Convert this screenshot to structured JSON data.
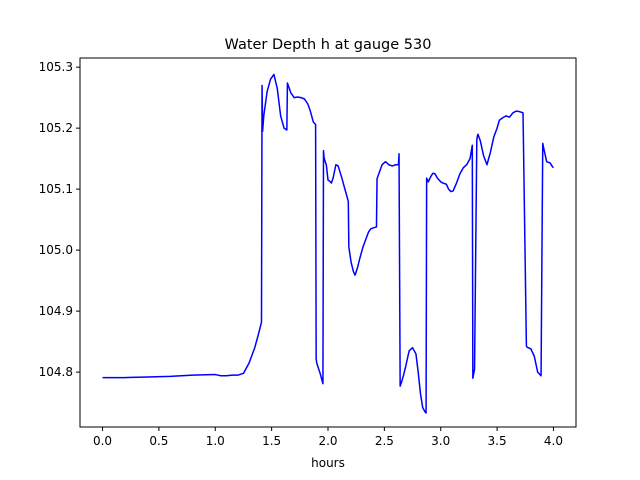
{
  "chart_data": {
    "type": "line",
    "title": "Water Depth h at gauge 530",
    "xlabel": "hours",
    "ylabel": "",
    "xlim": [
      -0.2,
      4.2
    ],
    "ylim": [
      104.71,
      105.315
    ],
    "xticks": [
      0.0,
      0.5,
      1.0,
      1.5,
      2.0,
      2.5,
      3.0,
      3.5,
      4.0
    ],
    "xtick_labels": [
      "0.0",
      "0.5",
      "1.0",
      "1.5",
      "2.0",
      "2.5",
      "3.0",
      "3.5",
      "4.0"
    ],
    "yticks": [
      104.8,
      104.9,
      105.0,
      105.1,
      105.2,
      105.3
    ],
    "ytick_labels": [
      "104.8",
      "104.9",
      "105.0",
      "105.1",
      "105.2",
      "105.3"
    ],
    "grid": false,
    "series": [
      {
        "color": "#0000ff",
        "x": [
          0.0,
          0.2,
          0.4,
          0.6,
          0.8,
          1.0,
          1.05,
          1.1,
          1.15,
          1.2,
          1.25,
          1.3,
          1.35,
          1.38,
          1.41,
          1.415,
          1.42,
          1.43,
          1.46,
          1.49,
          1.52,
          1.55,
          1.58,
          1.61,
          1.635,
          1.64,
          1.67,
          1.7,
          1.73,
          1.76,
          1.79,
          1.82,
          1.84,
          1.87,
          1.89,
          1.895,
          1.9,
          1.93,
          1.955,
          1.96,
          1.965,
          1.975,
          1.985,
          2.0,
          2.015,
          2.03,
          2.045,
          2.07,
          2.09,
          2.12,
          2.15,
          2.18,
          2.185,
          2.205,
          2.225,
          2.24,
          2.26,
          2.28,
          2.31,
          2.33,
          2.36,
          2.38,
          2.41,
          2.43,
          2.435,
          2.46,
          2.48,
          2.51,
          2.54,
          2.57,
          2.6,
          2.625,
          2.63,
          2.64,
          2.645,
          2.65,
          2.67,
          2.69,
          2.72,
          2.75,
          2.78,
          2.8,
          2.82,
          2.84,
          2.86,
          2.87,
          2.875,
          2.89,
          2.91,
          2.93,
          2.95,
          2.97,
          3.0,
          3.02,
          3.05,
          3.07,
          3.09,
          3.11,
          3.14,
          3.17,
          3.2,
          3.23,
          3.26,
          3.28,
          3.285,
          3.29,
          3.3,
          3.32,
          3.325,
          3.33,
          3.35,
          3.38,
          3.41,
          3.44,
          3.47,
          3.5,
          3.52,
          3.55,
          3.58,
          3.61,
          3.64,
          3.67,
          3.7,
          3.73,
          3.76,
          3.765,
          3.8,
          3.83,
          3.86,
          3.89,
          3.905,
          3.91,
          3.94,
          3.97,
          3.99,
          4.0
        ],
        "y": [
          104.791,
          104.791,
          104.792,
          104.793,
          104.795,
          104.796,
          104.794,
          104.794,
          104.795,
          104.795,
          104.798,
          104.815,
          104.84,
          104.86,
          104.882,
          105.27,
          105.195,
          105.22,
          105.26,
          105.28,
          105.288,
          105.265,
          105.22,
          105.2,
          105.197,
          105.274,
          105.258,
          105.25,
          105.251,
          105.25,
          105.248,
          105.24,
          105.23,
          105.21,
          105.206,
          104.822,
          104.815,
          104.798,
          104.781,
          105.163,
          105.152,
          105.145,
          105.14,
          105.115,
          105.113,
          105.11,
          105.118,
          105.14,
          105.138,
          105.12,
          105.1,
          105.08,
          105.005,
          104.98,
          104.965,
          104.959,
          104.97,
          104.985,
          105.005,
          105.015,
          105.03,
          105.035,
          105.037,
          105.038,
          105.117,
          105.13,
          105.14,
          105.145,
          105.14,
          105.138,
          105.14,
          105.14,
          105.158,
          104.777,
          104.78,
          104.782,
          104.795,
          104.81,
          104.835,
          104.84,
          104.83,
          104.8,
          104.765,
          104.742,
          104.735,
          104.733,
          105.118,
          105.112,
          105.12,
          105.126,
          105.125,
          105.118,
          105.112,
          105.11,
          105.108,
          105.1,
          105.096,
          105.097,
          105.11,
          105.125,
          105.135,
          105.14,
          105.15,
          105.172,
          104.79,
          104.795,
          104.805,
          105.18,
          105.187,
          105.19,
          105.18,
          105.155,
          105.14,
          105.16,
          105.185,
          105.2,
          105.213,
          105.217,
          105.22,
          105.218,
          105.225,
          105.228,
          105.227,
          105.225,
          104.843,
          104.841,
          104.838,
          104.826,
          104.8,
          104.794,
          105.175,
          105.17,
          105.145,
          105.143,
          105.137,
          105.135
        ]
      }
    ]
  }
}
